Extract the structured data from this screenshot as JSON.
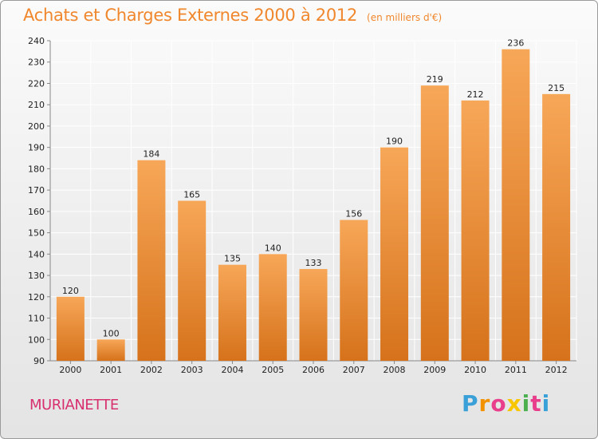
{
  "title": "Achats et Charges Externes 2000 à 2012",
  "subtitle": "(en milliers d'€)",
  "commune": "MURIANETTE",
  "logo": {
    "letters": [
      "P",
      "r",
      "o",
      "x",
      "i",
      "t",
      "i"
    ],
    "colors": [
      "#3aa0d8",
      "#f39200",
      "#e83e8c",
      "#f7c600",
      "#4caf50",
      "#e83e8c",
      "#3aa0d8"
    ]
  },
  "colors": {
    "bar_top": "#f7a758",
    "bar_bottom": "#d6721b",
    "grid": "#ffffff",
    "axis": "#888888"
  },
  "chart_data": {
    "type": "bar",
    "title": "Achats et Charges Externes 2000 à 2012",
    "categories": [
      "2000",
      "2001",
      "2002",
      "2003",
      "2004",
      "2005",
      "2006",
      "2007",
      "2008",
      "2009",
      "2010",
      "2011",
      "2012"
    ],
    "values": [
      120,
      100,
      184,
      165,
      135,
      140,
      133,
      156,
      190,
      219,
      212,
      236,
      215
    ],
    "ylim": [
      90,
      240
    ],
    "yticks": [
      90,
      100,
      110,
      120,
      130,
      140,
      150,
      160,
      170,
      180,
      190,
      200,
      210,
      220,
      230,
      240
    ],
    "grid": true,
    "data_labels": true
  }
}
